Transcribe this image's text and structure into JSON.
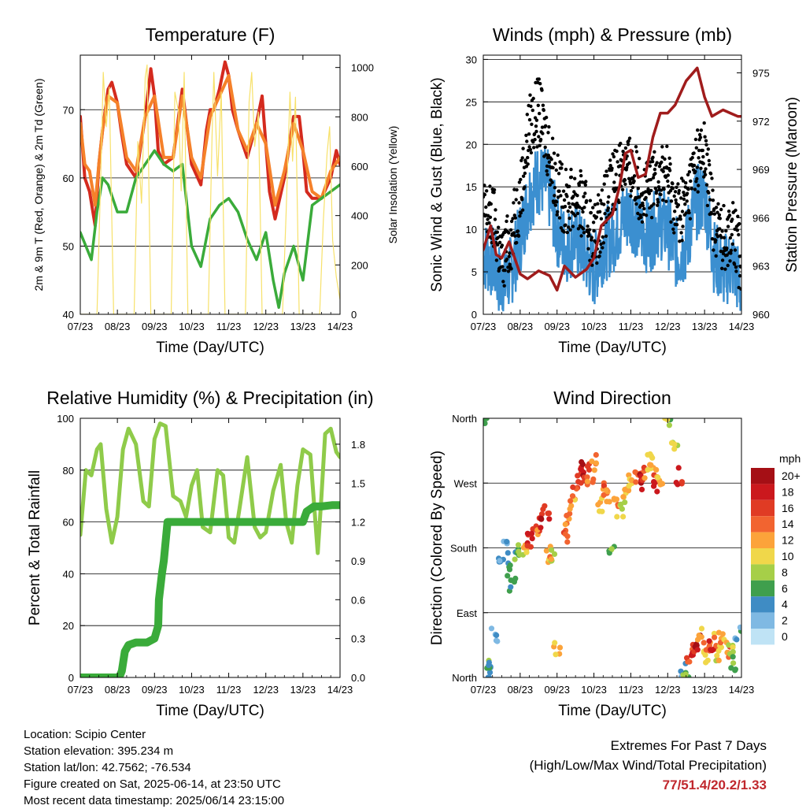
{
  "x_ticks": [
    "07/23",
    "08/23",
    "09/23",
    "10/23",
    "11/23",
    "12/23",
    "13/23",
    "14/23"
  ],
  "colors": {
    "temp_2m": "#d42a1e",
    "temp_9m": "#f5812a",
    "dewpoint": "#3aab3a",
    "solar": "#f7e16a",
    "wind": "#3b8fd0",
    "gust": "#000000",
    "pressure": "#a01c1c",
    "rh": "#8fcb4a",
    "precip": "#3aab3a"
  },
  "info": {
    "location": "Location: Scipio Center",
    "elevation": "Station elevation: 395.234 m",
    "latlon": "Station lat/lon: 42.7562; -76.534",
    "created": "Figure created on Sat, 2025-06-14, at 23:50 UTC",
    "recent": "Most recent data timestamp: 2025/06/14 23:15:00"
  },
  "extremes": {
    "title": "Extremes For Past 7 Days",
    "subtitle": "(High/Low/Max Wind/Total Precipitation)",
    "values": "77/51.4/20.2/1.33"
  },
  "chart_data": [
    {
      "type": "line",
      "title": "Temperature (F)",
      "xlabel": "Time (Day/UTC)",
      "ylabel": "2m & 9m T (Red, Orange) & 2m Td (Green)",
      "y2label": "Solar Insolation (Yellow)",
      "xlim": [
        0,
        7
      ],
      "ylim": [
        40,
        78
      ],
      "y2lim": [
        0,
        1050
      ],
      "yticks": [
        40,
        50,
        60,
        70
      ],
      "y2ticks": [
        0,
        200,
        400,
        600,
        800,
        1000
      ],
      "series": [
        {
          "name": "2m T",
          "axis": "left",
          "color": "#d42a1e",
          "x": [
            0,
            0.12,
            0.25,
            0.4,
            0.5,
            0.6,
            0.75,
            0.85,
            1.0,
            1.1,
            1.25,
            1.5,
            1.75,
            1.9,
            2.0,
            2.1,
            2.25,
            2.5,
            2.75,
            3.0,
            3.25,
            3.4,
            3.5,
            3.6,
            3.75,
            3.9,
            4.0,
            4.1,
            4.25,
            4.5,
            4.75,
            4.9,
            5.0,
            5.1,
            5.25,
            5.5,
            5.75,
            5.9,
            6.0,
            6.1,
            6.25,
            6.5,
            6.75,
            6.9,
            7.0
          ],
          "y": [
            69,
            60,
            58,
            53,
            62,
            67,
            73,
            74,
            71,
            67,
            62,
            60,
            69,
            76,
            72,
            64,
            62,
            63,
            73,
            62,
            59,
            67,
            70,
            70,
            73,
            77,
            75,
            70,
            67,
            63,
            68,
            72,
            65,
            58,
            54,
            60,
            69,
            69,
            64,
            58,
            57,
            57,
            60,
            64,
            62
          ]
        },
        {
          "name": "9m T",
          "axis": "left",
          "color": "#f5812a",
          "x": [
            0,
            0.12,
            0.25,
            0.4,
            0.5,
            0.6,
            0.75,
            1.0,
            1.25,
            1.5,
            1.75,
            2.0,
            2.25,
            2.5,
            2.75,
            3.0,
            3.25,
            3.5,
            3.75,
            4.0,
            4.25,
            4.5,
            4.75,
            5.0,
            5.25,
            5.5,
            5.75,
            6.0,
            6.25,
            6.5,
            6.75,
            7.0
          ],
          "y": [
            68,
            62,
            61,
            56,
            62,
            67,
            72,
            71,
            63,
            61,
            69,
            72,
            63,
            63,
            72,
            63,
            60,
            69,
            72,
            75,
            67,
            64,
            68,
            65,
            56,
            61,
            68,
            64,
            58,
            57,
            61,
            63
          ]
        },
        {
          "name": "2m Td",
          "axis": "left",
          "color": "#3aab3a",
          "x": [
            0,
            0.15,
            0.3,
            0.45,
            0.6,
            0.75,
            1.0,
            1.25,
            1.5,
            1.75,
            2.0,
            2.25,
            2.5,
            2.75,
            3.0,
            3.25,
            3.5,
            3.75,
            4.0,
            4.25,
            4.5,
            4.75,
            5.0,
            5.2,
            5.35,
            5.5,
            5.75,
            6.0,
            6.25,
            6.5,
            6.75,
            7.0
          ],
          "y": [
            52,
            50,
            48,
            55,
            60,
            59,
            55,
            55,
            60,
            62,
            64,
            62,
            61,
            62,
            50,
            47,
            54,
            56,
            57,
            55,
            51,
            48,
            52,
            45,
            41,
            46,
            50,
            45,
            56,
            57,
            58,
            59
          ]
        },
        {
          "name": "Solar",
          "axis": "right",
          "color": "#f7e16a",
          "x": [
            0,
            0.45,
            0.55,
            0.62,
            0.7,
            0.78,
            0.9,
            1.45,
            1.55,
            1.65,
            1.75,
            1.8,
            1.9,
            2.45,
            2.55,
            2.65,
            2.72,
            2.8,
            2.9,
            3.45,
            3.55,
            3.6,
            3.7,
            3.8,
            3.9,
            4.45,
            4.55,
            4.62,
            4.7,
            4.8,
            4.9,
            5.45,
            5.55,
            5.65,
            5.72,
            5.8,
            5.9,
            6.45,
            6.55,
            6.65,
            6.72,
            6.8,
            6.9,
            7.0
          ],
          "y": [
            0,
            0,
            550,
            980,
            760,
            920,
            0,
            0,
            700,
            450,
            960,
            1010,
            0,
            0,
            900,
            820,
            500,
            980,
            0,
            0,
            720,
            980,
            560,
            900,
            0,
            0,
            860,
            980,
            680,
            820,
            0,
            0,
            420,
            900,
            620,
            880,
            0,
            0,
            380,
            650,
            760,
            300,
            150,
            60
          ]
        }
      ]
    },
    {
      "type": "line",
      "title": "Winds (mph) & Pressure (mb)",
      "xlabel": "Time (Day/UTC)",
      "ylabel": "Sonic Wind & Gust (Blue, Black)",
      "y2label": "Station Pressure (Maroon)",
      "xlim": [
        0,
        7
      ],
      "ylim": [
        0,
        30.5
      ],
      "y2lim": [
        960,
        976.1
      ],
      "yticks": [
        0,
        5,
        10,
        15,
        20,
        25,
        30
      ],
      "y2ticks": [
        960,
        963,
        966,
        969,
        972,
        975
      ],
      "series": [
        {
          "name": "Sonic Wind",
          "axis": "left",
          "color": "#3b8fd0",
          "x": [
            0,
            0.3,
            0.5,
            0.75,
            1.0,
            1.25,
            1.5,
            1.75,
            2.0,
            2.25,
            2.5,
            2.75,
            3.0,
            3.25,
            3.5,
            3.75,
            4.0,
            4.25,
            4.5,
            4.75,
            5.0,
            5.25,
            5.5,
            5.75,
            6.0,
            6.25,
            6.5,
            6.75,
            7.0
          ],
          "y": [
            7,
            6,
            3,
            5,
            9,
            14,
            16,
            15,
            10,
            8,
            9,
            7,
            5,
            8,
            9,
            11,
            12,
            10,
            9,
            11,
            10,
            7,
            8,
            13,
            14,
            7,
            5,
            6,
            3
          ]
        },
        {
          "name": "Gust",
          "axis": "left",
          "color": "#000000",
          "x": [
            0,
            0.3,
            0.5,
            0.75,
            1.0,
            1.25,
            1.5,
            1.75,
            2.0,
            2.25,
            2.5,
            2.75,
            3.0,
            3.25,
            3.5,
            3.75,
            4.0,
            4.25,
            4.5,
            4.75,
            5.0,
            5.25,
            5.5,
            5.75,
            6.0,
            6.25,
            6.5,
            6.75,
            7.0
          ],
          "y": [
            12,
            11,
            6,
            9,
            14,
            22,
            24,
            20,
            15,
            13,
            14,
            12,
            9,
            12,
            15,
            18,
            17,
            15,
            14,
            17,
            16,
            12,
            13,
            18,
            19,
            11,
            9,
            10,
            6
          ]
        },
        {
          "name": "Station Pressure",
          "axis": "right",
          "color": "#a01c1c",
          "x": [
            0,
            0.2,
            0.35,
            0.5,
            0.7,
            1.0,
            1.2,
            1.5,
            1.8,
            2.0,
            2.2,
            2.5,
            2.8,
            3.0,
            3.2,
            3.5,
            3.7,
            3.85,
            4.0,
            4.2,
            4.4,
            4.6,
            4.8,
            5.0,
            5.2,
            5.5,
            5.8,
            6.0,
            6.2,
            6.5,
            6.7,
            6.9,
            7.0
          ],
          "y": [
            964,
            965.5,
            963.7,
            963.5,
            964.5,
            962.5,
            962.2,
            962.7,
            962.4,
            961.5,
            963,
            962.3,
            962.8,
            963.5,
            965.5,
            966.2,
            968,
            970,
            970.2,
            968.5,
            968.7,
            971,
            972.5,
            972.5,
            973,
            974.5,
            975.3,
            973.5,
            972.3,
            972.7,
            972.5,
            972.3,
            972.3
          ]
        }
      ]
    },
    {
      "type": "line",
      "title": "Relative Humidity (%) & Precipitation (in)",
      "xlabel": "Time (Day/UTC)",
      "ylabel": "Percent & Total Rainfall",
      "xlim": [
        0,
        7
      ],
      "ylim": [
        0,
        100
      ],
      "y2lim": [
        0,
        2.0
      ],
      "yticks": [
        0,
        20,
        40,
        60,
        80,
        100
      ],
      "y2ticks": [
        0.0,
        0.3,
        0.6,
        0.9,
        1.2,
        1.5,
        1.8
      ],
      "series": [
        {
          "name": "RH",
          "axis": "left",
          "color": "#8fcb4a",
          "x": [
            0,
            0.15,
            0.3,
            0.45,
            0.55,
            0.7,
            0.85,
            1.0,
            1.15,
            1.3,
            1.5,
            1.7,
            1.85,
            2.0,
            2.15,
            2.3,
            2.5,
            2.7,
            2.85,
            3.0,
            3.15,
            3.3,
            3.5,
            3.7,
            3.85,
            4.0,
            4.15,
            4.3,
            4.5,
            4.7,
            4.85,
            5.0,
            5.2,
            5.4,
            5.55,
            5.7,
            5.85,
            6.0,
            6.2,
            6.4,
            6.5,
            6.6,
            6.75,
            6.9,
            7.0
          ],
          "y": [
            55,
            80,
            78,
            88,
            90,
            65,
            52,
            62,
            88,
            96,
            90,
            68,
            66,
            92,
            98,
            97,
            70,
            68,
            62,
            74,
            80,
            58,
            56,
            80,
            78,
            54,
            52,
            66,
            85,
            58,
            54,
            56,
            72,
            82,
            60,
            52,
            74,
            88,
            86,
            48,
            70,
            94,
            96,
            87,
            85
          ]
        },
        {
          "name": "Total Precipitation",
          "axis": "right",
          "color": "#3aab3a",
          "x": [
            0,
            1.05,
            1.12,
            1.2,
            1.3,
            1.5,
            1.8,
            2.0,
            2.1,
            2.12,
            2.2,
            2.25,
            2.35,
            6.0,
            6.1,
            6.3,
            6.5,
            6.8,
            7.0
          ],
          "y": [
            0,
            0,
            0.05,
            0.2,
            0.25,
            0.27,
            0.27,
            0.3,
            0.4,
            0.6,
            0.8,
            0.9,
            1.2,
            1.2,
            1.28,
            1.32,
            1.32,
            1.33,
            1.33
          ]
        }
      ]
    },
    {
      "type": "scatter",
      "title": "Wind Direction",
      "xlabel": "Time (Day/UTC)",
      "ylabel": "Direction (Colored By Speed)",
      "xlim": [
        0,
        7
      ],
      "ylim": [
        0,
        360
      ],
      "ytick_values": [
        0,
        90,
        180,
        270,
        360
      ],
      "ytick_labels": [
        "North",
        "East",
        "South",
        "West",
        "North"
      ],
      "colorbar": {
        "title": "mph",
        "labels": [
          "20+",
          "18",
          "16",
          "14",
          "12",
          "10",
          "8",
          "6",
          "4",
          "2",
          "0"
        ],
        "colors": [
          "#a50f15",
          "#cb181d",
          "#e03b24",
          "#f26430",
          "#fca33a",
          "#f0d74a",
          "#a6cf48",
          "#3f9f4d",
          "#3f8cc4",
          "#7fb9e3",
          "#bfe3f5"
        ]
      },
      "series": [
        {
          "name": "Direction",
          "x": [
            0.1,
            0.15,
            0.2,
            0.3,
            0.5,
            0.6,
            0.7,
            0.8,
            0.9,
            1.0,
            1.1,
            1.2,
            1.4,
            1.5,
            1.6,
            1.7,
            1.8,
            1.9,
            2.0,
            2.2,
            2.3,
            2.4,
            2.5,
            2.6,
            2.7,
            2.8,
            2.9,
            3.0,
            3.2,
            3.3,
            3.4,
            3.5,
            3.6,
            3.7,
            3.8,
            3.9,
            4.0,
            4.2,
            4.3,
            4.4,
            4.5,
            4.6,
            4.7,
            4.8,
            5.0,
            5.2,
            5.3,
            5.4,
            5.5,
            5.6,
            5.7,
            5.8,
            5.9,
            6.0,
            6.1,
            6.2,
            6.3,
            6.4,
            6.5,
            6.6,
            6.7,
            6.8,
            6.9
          ],
          "y": [
            360,
            5,
            20,
            60,
            160,
            180,
            150,
            130,
            170,
            175,
            185,
            190,
            200,
            210,
            215,
            230,
            170,
            165,
            40,
            195,
            220,
            240,
            260,
            280,
            290,
            285,
            270,
            300,
            240,
            260,
            250,
            180,
            240,
            230,
            250,
            260,
            270,
            275,
            270,
            280,
            300,
            290,
            270,
            280,
            360,
            320,
            280,
            0,
            10,
            30,
            40,
            50,
            60,
            25,
            40,
            45,
            55,
            30,
            50,
            40,
            35,
            20,
            60
          ],
          "speed": [
            5,
            4,
            6,
            3,
            3,
            2,
            4,
            5,
            6,
            7,
            12,
            16,
            17,
            14,
            18,
            16,
            11,
            9,
            10,
            15,
            13,
            12,
            14,
            17,
            19,
            16,
            12,
            13,
            11,
            14,
            12,
            6,
            12,
            9,
            10,
            11,
            12,
            15,
            18,
            14,
            10,
            12,
            17,
            11,
            8,
            8,
            16,
            2,
            6,
            14,
            16,
            18,
            12,
            10,
            14,
            17,
            12,
            9,
            11,
            13,
            8,
            6,
            4
          ]
        }
      ]
    }
  ]
}
